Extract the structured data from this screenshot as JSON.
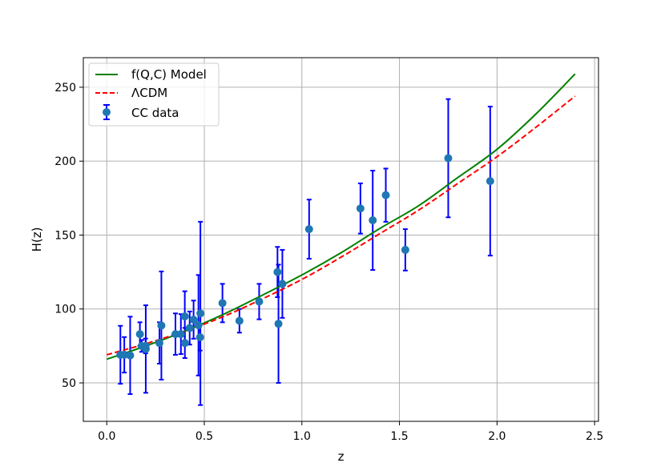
{
  "chart_data": {
    "type": "line",
    "title": "",
    "xlabel": "z",
    "ylabel": "H(z)",
    "xlim": [
      -0.12,
      2.52
    ],
    "ylim": [
      24,
      270
    ],
    "xticks": [
      0.0,
      0.5,
      1.0,
      1.5,
      2.0,
      2.5
    ],
    "xtick_labels": [
      "0.0",
      "0.5",
      "1.0",
      "1.5",
      "2.0",
      "2.5"
    ],
    "yticks": [
      50,
      100,
      150,
      200,
      250
    ],
    "ytick_labels": [
      "50",
      "100",
      "150",
      "200",
      "250"
    ],
    "grid": true,
    "legend_position": "upper-left",
    "series": [
      {
        "name": "f(Q,C) Model",
        "kind": "line",
        "style": "solid",
        "color": "#008000",
        "x": [
          0.0,
          0.2,
          0.4,
          0.6,
          0.8,
          1.0,
          1.2,
          1.4,
          1.6,
          1.8,
          2.0,
          2.2,
          2.4
        ],
        "y": [
          66,
          75,
          85,
          96.5,
          109.5,
          123,
          138,
          154.5,
          170,
          189,
          208,
          232,
          259
        ]
      },
      {
        "name": "ΛCDM",
        "kind": "line",
        "style": "dashed",
        "color": "#ff0000",
        "x": [
          0.0,
          0.2,
          0.4,
          0.6,
          0.8,
          1.0,
          1.2,
          1.4,
          1.6,
          1.8,
          2.0,
          2.2,
          2.4
        ],
        "y": [
          69,
          76.5,
          85,
          95,
          107,
          120,
          135,
          151,
          167,
          185,
          203,
          223,
          244
        ]
      },
      {
        "name": "CC data",
        "kind": "errorbar",
        "marker_color": "#1f77b4",
        "errorbar_color": "#0000ff",
        "points": [
          {
            "x": 0.07,
            "y": 69,
            "err": 19.6
          },
          {
            "x": 0.09,
            "y": 69,
            "err": 12
          },
          {
            "x": 0.12,
            "y": 68.6,
            "err": 26.2
          },
          {
            "x": 0.17,
            "y": 83,
            "err": 8
          },
          {
            "x": 0.179,
            "y": 75,
            "err": 4
          },
          {
            "x": 0.199,
            "y": 75,
            "err": 5
          },
          {
            "x": 0.2,
            "y": 72.9,
            "err": 29.6
          },
          {
            "x": 0.27,
            "y": 77,
            "err": 14
          },
          {
            "x": 0.28,
            "y": 88.8,
            "err": 36.6
          },
          {
            "x": 0.352,
            "y": 83,
            "err": 14
          },
          {
            "x": 0.38,
            "y": 83,
            "err": 13.5
          },
          {
            "x": 0.4,
            "y": 95,
            "err": 17
          },
          {
            "x": 0.4004,
            "y": 77,
            "err": 10.2
          },
          {
            "x": 0.425,
            "y": 87.1,
            "err": 11.2
          },
          {
            "x": 0.445,
            "y": 92.8,
            "err": 12.9
          },
          {
            "x": 0.47,
            "y": 89,
            "err": 34
          },
          {
            "x": 0.4783,
            "y": 80.9,
            "err": 9
          },
          {
            "x": 0.48,
            "y": 97,
            "err": 62
          },
          {
            "x": 0.593,
            "y": 104,
            "err": 13
          },
          {
            "x": 0.68,
            "y": 92,
            "err": 8
          },
          {
            "x": 0.781,
            "y": 105,
            "err": 12
          },
          {
            "x": 0.875,
            "y": 125,
            "err": 17
          },
          {
            "x": 0.88,
            "y": 90,
            "err": 40
          },
          {
            "x": 0.9,
            "y": 117,
            "err": 23
          },
          {
            "x": 1.037,
            "y": 154,
            "err": 20
          },
          {
            "x": 1.3,
            "y": 168,
            "err": 17
          },
          {
            "x": 1.363,
            "y": 160,
            "err": 33.6
          },
          {
            "x": 1.43,
            "y": 177,
            "err": 18
          },
          {
            "x": 1.53,
            "y": 140,
            "err": 14
          },
          {
            "x": 1.75,
            "y": 202,
            "err": 40
          },
          {
            "x": 1.965,
            "y": 186.5,
            "err": 50.4
          }
        ]
      }
    ]
  }
}
